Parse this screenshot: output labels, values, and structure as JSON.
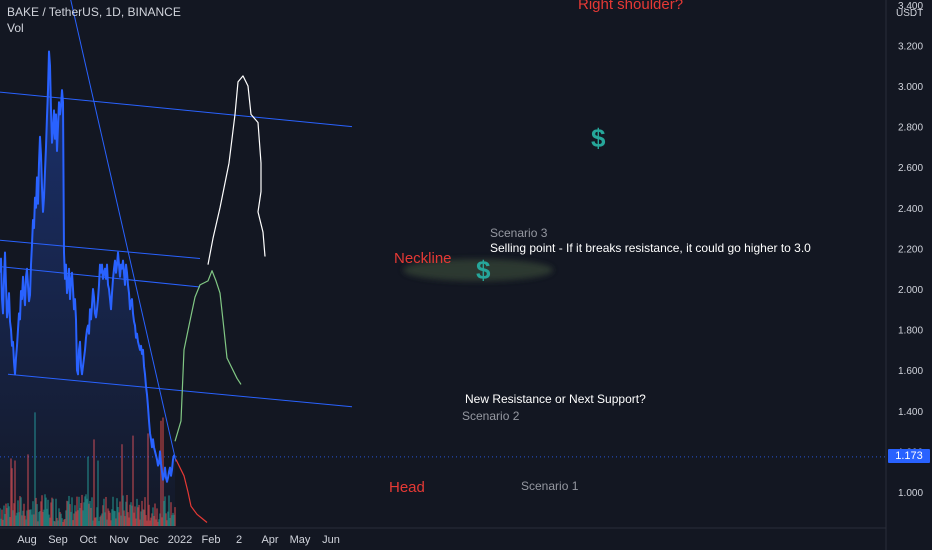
{
  "header": {
    "symbol_line": "BAKE / TetherUS, 1D, BINANCE",
    "volume_label": "Vol"
  },
  "price_axis": {
    "currency": "USDT",
    "ticks": [
      "3.400",
      "3.200",
      "3.000",
      "2.800",
      "2.600",
      "2.400",
      "2.200",
      "2.000",
      "1.800",
      "1.600",
      "1.400",
      "1.200",
      "1.000"
    ],
    "last_price": "1.173"
  },
  "time_axis": {
    "ticks": [
      "Aug",
      "Sep",
      "Oct",
      "Nov",
      "Dec",
      "2022",
      "Feb",
      "2",
      "Apr",
      "May",
      "Jun"
    ]
  },
  "annotations": {
    "right_shoulder": "Right shoulder?",
    "scenario3": "Scenario 3",
    "selling_point": "Selling point - If it breaks resistance, it could go higher to 3.0",
    "neckline": "Neckline",
    "new_resistance": "New Resistance or Next Support?",
    "scenario2": "Scenario 2",
    "head": "Head",
    "scenario1": "Scenario 1",
    "dollar": "$"
  },
  "colors": {
    "background": "#131722",
    "price_line": "#2962ff",
    "trend_lines": "#2962ff",
    "annotation_red": "#e53935",
    "annotation_green": "#26a69a",
    "scenario_green": "#81c784",
    "scenario_red": "#e53935",
    "scenario_white": "#ffffff",
    "volume_up": "#26a69a",
    "volume_down": "#ef5350"
  },
  "chart_data": {
    "type": "line",
    "ylim": [
      0.8,
      3.4
    ],
    "price_series": [
      {
        "d": "2021-07-05",
        "v": 2.08
      },
      {
        "d": "2021-07-06",
        "v": 2.15
      },
      {
        "d": "2021-07-07",
        "v": 1.95
      },
      {
        "d": "2021-07-08",
        "v": 1.88
      },
      {
        "d": "2021-07-09",
        "v": 2.05
      },
      {
        "d": "2021-07-10",
        "v": 2.18
      },
      {
        "d": "2021-07-11",
        "v": 2.02
      },
      {
        "d": "2021-07-12",
        "v": 1.86
      },
      {
        "d": "2021-07-13",
        "v": 1.9
      },
      {
        "d": "2021-07-14",
        "v": 1.98
      },
      {
        "d": "2021-07-15",
        "v": 1.84
      },
      {
        "d": "2021-07-16",
        "v": 1.8
      },
      {
        "d": "2021-07-17",
        "v": 1.72
      },
      {
        "d": "2021-07-18",
        "v": 1.74
      },
      {
        "d": "2021-07-19",
        "v": 1.64
      },
      {
        "d": "2021-07-20",
        "v": 1.58
      },
      {
        "d": "2021-07-21",
        "v": 1.66
      },
      {
        "d": "2021-07-22",
        "v": 1.72
      },
      {
        "d": "2021-07-23",
        "v": 1.8
      },
      {
        "d": "2021-07-24",
        "v": 1.88
      },
      {
        "d": "2021-07-25",
        "v": 1.85
      },
      {
        "d": "2021-07-26",
        "v": 1.99
      },
      {
        "d": "2021-07-27",
        "v": 1.95
      },
      {
        "d": "2021-07-28",
        "v": 2.06
      },
      {
        "d": "2021-07-29",
        "v": 1.98
      },
      {
        "d": "2021-07-30",
        "v": 1.92
      },
      {
        "d": "2021-07-31",
        "v": 2.06
      },
      {
        "d": "2021-08-01",
        "v": 2.1
      },
      {
        "d": "2021-08-02",
        "v": 2.02
      },
      {
        "d": "2021-08-03",
        "v": 1.94
      },
      {
        "d": "2021-08-04",
        "v": 1.97
      },
      {
        "d": "2021-08-05",
        "v": 2.12
      },
      {
        "d": "2021-08-06",
        "v": 2.22
      },
      {
        "d": "2021-08-07",
        "v": 2.34
      },
      {
        "d": "2021-08-08",
        "v": 2.3
      },
      {
        "d": "2021-08-09",
        "v": 2.45
      },
      {
        "d": "2021-08-10",
        "v": 2.4
      },
      {
        "d": "2021-08-11",
        "v": 2.55
      },
      {
        "d": "2021-08-12",
        "v": 2.42
      },
      {
        "d": "2021-08-13",
        "v": 2.62
      },
      {
        "d": "2021-08-14",
        "v": 2.75
      },
      {
        "d": "2021-08-15",
        "v": 2.66
      },
      {
        "d": "2021-08-16",
        "v": 2.5
      },
      {
        "d": "2021-08-17",
        "v": 2.38
      },
      {
        "d": "2021-08-18",
        "v": 2.45
      },
      {
        "d": "2021-08-19",
        "v": 2.58
      },
      {
        "d": "2021-08-20",
        "v": 2.7
      },
      {
        "d": "2021-08-21",
        "v": 2.85
      },
      {
        "d": "2021-08-22",
        "v": 2.98
      },
      {
        "d": "2021-08-23",
        "v": 3.17
      },
      {
        "d": "2021-08-24",
        "v": 3.1
      },
      {
        "d": "2021-08-25",
        "v": 2.88
      },
      {
        "d": "2021-08-26",
        "v": 2.72
      },
      {
        "d": "2021-08-27",
        "v": 2.78
      },
      {
        "d": "2021-08-28",
        "v": 2.88
      },
      {
        "d": "2021-08-29",
        "v": 2.74
      },
      {
        "d": "2021-08-30",
        "v": 2.86
      },
      {
        "d": "2021-08-31",
        "v": 2.68
      },
      {
        "d": "2021-09-01",
        "v": 2.8
      },
      {
        "d": "2021-09-02",
        "v": 2.92
      },
      {
        "d": "2021-09-03",
        "v": 2.86
      },
      {
        "d": "2021-09-04",
        "v": 2.9
      },
      {
        "d": "2021-09-05",
        "v": 2.98
      },
      {
        "d": "2021-09-06",
        "v": 2.92
      },
      {
        "d": "2021-09-07",
        "v": 2.18
      },
      {
        "d": "2021-09-08",
        "v": 2.05
      },
      {
        "d": "2021-09-09",
        "v": 2.12
      },
      {
        "d": "2021-09-10",
        "v": 1.98
      },
      {
        "d": "2021-09-11",
        "v": 2.02
      },
      {
        "d": "2021-09-12",
        "v": 2.1
      },
      {
        "d": "2021-09-13",
        "v": 1.95
      },
      {
        "d": "2021-09-14",
        "v": 2.04
      },
      {
        "d": "2021-09-15",
        "v": 2.08
      },
      {
        "d": "2021-09-16",
        "v": 2.0
      },
      {
        "d": "2021-09-17",
        "v": 1.9
      },
      {
        "d": "2021-09-18",
        "v": 1.95
      },
      {
        "d": "2021-09-19",
        "v": 1.85
      },
      {
        "d": "2021-09-20",
        "v": 1.6
      },
      {
        "d": "2021-09-21",
        "v": 1.58
      },
      {
        "d": "2021-09-22",
        "v": 1.7
      },
      {
        "d": "2021-09-23",
        "v": 1.74
      },
      {
        "d": "2021-09-24",
        "v": 1.62
      },
      {
        "d": "2021-09-25",
        "v": 1.58
      },
      {
        "d": "2021-09-26",
        "v": 1.62
      },
      {
        "d": "2021-09-27",
        "v": 1.66
      },
      {
        "d": "2021-09-28",
        "v": 1.7
      },
      {
        "d": "2021-09-29",
        "v": 1.76
      },
      {
        "d": "2021-09-30",
        "v": 1.8
      },
      {
        "d": "2021-10-01",
        "v": 1.82
      },
      {
        "d": "2021-10-02",
        "v": 1.78
      },
      {
        "d": "2021-10-03",
        "v": 1.9
      },
      {
        "d": "2021-10-04",
        "v": 1.85
      },
      {
        "d": "2021-10-05",
        "v": 1.92
      },
      {
        "d": "2021-10-06",
        "v": 2.0
      },
      {
        "d": "2021-10-07",
        "v": 1.96
      },
      {
        "d": "2021-10-08",
        "v": 1.88
      },
      {
        "d": "2021-10-09",
        "v": 1.86
      },
      {
        "d": "2021-10-10",
        "v": 1.9
      },
      {
        "d": "2021-10-11",
        "v": 1.95
      },
      {
        "d": "2021-10-12",
        "v": 2.02
      },
      {
        "d": "2021-10-13",
        "v": 2.12
      },
      {
        "d": "2021-10-14",
        "v": 2.08
      },
      {
        "d": "2021-10-15",
        "v": 2.12
      },
      {
        "d": "2021-10-16",
        "v": 2.05
      },
      {
        "d": "2021-10-17",
        "v": 2.08
      },
      {
        "d": "2021-10-18",
        "v": 2.1
      },
      {
        "d": "2021-10-19",
        "v": 2.05
      },
      {
        "d": "2021-10-20",
        "v": 2.12
      },
      {
        "d": "2021-10-21",
        "v": 2.02
      },
      {
        "d": "2021-10-22",
        "v": 2.0
      },
      {
        "d": "2021-10-23",
        "v": 1.95
      },
      {
        "d": "2021-10-24",
        "v": 1.9
      },
      {
        "d": "2021-10-25",
        "v": 1.98
      },
      {
        "d": "2021-10-26",
        "v": 2.05
      },
      {
        "d": "2021-10-27",
        "v": 2.1
      },
      {
        "d": "2021-10-28",
        "v": 2.14
      },
      {
        "d": "2021-10-29",
        "v": 2.08
      },
      {
        "d": "2021-10-30",
        "v": 2.12
      },
      {
        "d": "2021-10-31",
        "v": 2.18
      },
      {
        "d": "2021-11-01",
        "v": 2.12
      },
      {
        "d": "2021-11-02",
        "v": 2.06
      },
      {
        "d": "2021-11-03",
        "v": 2.12
      },
      {
        "d": "2021-11-04",
        "v": 2.1
      },
      {
        "d": "2021-11-05",
        "v": 2.14
      },
      {
        "d": "2021-11-06",
        "v": 2.08
      },
      {
        "d": "2021-11-07",
        "v": 2.02
      },
      {
        "d": "2021-11-08",
        "v": 2.12
      },
      {
        "d": "2021-11-09",
        "v": 2.08
      },
      {
        "d": "2021-11-10",
        "v": 2.02
      },
      {
        "d": "2021-11-11",
        "v": 1.98
      },
      {
        "d": "2021-11-12",
        "v": 1.9
      },
      {
        "d": "2021-11-13",
        "v": 1.94
      },
      {
        "d": "2021-11-14",
        "v": 1.95
      },
      {
        "d": "2021-11-15",
        "v": 1.88
      },
      {
        "d": "2021-11-16",
        "v": 1.84
      },
      {
        "d": "2021-11-17",
        "v": 1.82
      },
      {
        "d": "2021-11-18",
        "v": 1.76
      },
      {
        "d": "2021-11-19",
        "v": 1.78
      },
      {
        "d": "2021-11-20",
        "v": 1.74
      },
      {
        "d": "2021-11-21",
        "v": 1.72
      },
      {
        "d": "2021-11-22",
        "v": 1.7
      },
      {
        "d": "2021-11-23",
        "v": 1.72
      },
      {
        "d": "2021-11-24",
        "v": 1.68
      },
      {
        "d": "2021-11-25",
        "v": 1.7
      },
      {
        "d": "2021-11-26",
        "v": 1.62
      },
      {
        "d": "2021-11-27",
        "v": 1.58
      },
      {
        "d": "2021-11-28",
        "v": 1.52
      },
      {
        "d": "2021-11-29",
        "v": 1.48
      },
      {
        "d": "2021-11-30",
        "v": 1.42
      },
      {
        "d": "2021-12-01",
        "v": 1.35
      },
      {
        "d": "2021-12-02",
        "v": 1.29
      },
      {
        "d": "2021-12-03",
        "v": 1.26
      },
      {
        "d": "2021-12-04",
        "v": 1.22
      },
      {
        "d": "2021-12-05",
        "v": 1.26
      },
      {
        "d": "2021-12-06",
        "v": 1.22
      },
      {
        "d": "2021-12-07",
        "v": 1.2
      },
      {
        "d": "2021-12-08",
        "v": 1.18
      },
      {
        "d": "2021-12-09",
        "v": 1.16
      },
      {
        "d": "2021-12-10",
        "v": 1.13
      },
      {
        "d": "2021-12-11",
        "v": 1.14
      },
      {
        "d": "2021-12-12",
        "v": 1.2
      },
      {
        "d": "2021-12-13",
        "v": 1.14
      },
      {
        "d": "2021-12-14",
        "v": 1.1
      },
      {
        "d": "2021-12-15",
        "v": 1.06
      },
      {
        "d": "2021-12-16",
        "v": 1.08
      },
      {
        "d": "2021-12-17",
        "v": 1.12
      },
      {
        "d": "2021-12-18",
        "v": 1.07
      },
      {
        "d": "2021-12-19",
        "v": 1.05
      },
      {
        "d": "2021-12-20",
        "v": 1.07
      },
      {
        "d": "2021-12-21",
        "v": 1.1
      },
      {
        "d": "2021-12-22",
        "v": 1.12
      },
      {
        "d": "2021-12-23",
        "v": 1.08
      },
      {
        "d": "2021-12-24",
        "v": 1.11
      },
      {
        "d": "2021-12-25",
        "v": 1.16
      },
      {
        "d": "2021-12-26",
        "v": 1.18
      },
      {
        "d": "2021-12-27",
        "v": 1.173
      }
    ],
    "trend_lines": [
      {
        "from": {
          "d": "2021-07-05",
          "v": 2.97
        },
        "to": {
          "d": "2022-06-22",
          "v": 2.8
        }
      },
      {
        "from": {
          "d": "2021-07-05",
          "v": 2.24
        },
        "to": {
          "d": "2022-01-21",
          "v": 2.15
        }
      },
      {
        "from": {
          "d": "2021-07-05",
          "v": 2.11
        },
        "to": {
          "d": "2022-01-21",
          "v": 2.01
        }
      },
      {
        "from": {
          "d": "2021-07-13",
          "v": 1.58
        },
        "to": {
          "d": "2022-06-22",
          "v": 1.42
        }
      },
      {
        "from": {
          "d": "2021-09-13",
          "v": 3.44
        },
        "to": {
          "d": "2021-12-28",
          "v": 1.15
        }
      }
    ],
    "scenario_paths": [
      {
        "name": "Scenario 1",
        "points": [
          {
            "d": "2021-12-28",
            "v": 1.16
          },
          {
            "d": "2022-01-05",
            "v": 1.08
          },
          {
            "d": "2022-01-09",
            "v": 1.0
          },
          {
            "d": "2022-01-12",
            "v": 0.93
          },
          {
            "d": "2022-01-18",
            "v": 0.89
          },
          {
            "d": "2022-01-23",
            "v": 0.87
          },
          {
            "d": "2022-01-28",
            "v": 0.85
          }
        ]
      },
      {
        "name": "Scenario 2",
        "points": [
          {
            "d": "2021-12-27",
            "v": 1.25
          },
          {
            "d": "2022-01-02",
            "v": 1.35
          },
          {
            "d": "2022-01-05",
            "v": 1.7
          },
          {
            "d": "2022-01-10",
            "v": 1.82
          },
          {
            "d": "2022-01-16",
            "v": 1.96
          },
          {
            "d": "2022-01-21",
            "v": 2.02
          },
          {
            "d": "2022-01-29",
            "v": 2.04
          },
          {
            "d": "2022-02-02",
            "v": 2.09
          },
          {
            "d": "2022-02-06",
            "v": 2.04
          },
          {
            "d": "2022-02-10",
            "v": 1.98
          },
          {
            "d": "2022-02-14",
            "v": 1.8
          },
          {
            "d": "2022-02-17",
            "v": 1.66
          },
          {
            "d": "2022-02-20",
            "v": 1.63
          },
          {
            "d": "2022-02-27",
            "v": 1.56
          },
          {
            "d": "2022-03-03",
            "v": 1.53
          }
        ]
      },
      {
        "name": "Scenario 3",
        "points": [
          {
            "d": "2022-01-29",
            "v": 2.12
          },
          {
            "d": "2022-02-03",
            "v": 2.25
          },
          {
            "d": "2022-02-10",
            "v": 2.4
          },
          {
            "d": "2022-02-19",
            "v": 2.62
          },
          {
            "d": "2022-02-25",
            "v": 2.86
          },
          {
            "d": "2022-02-28",
            "v": 3.02
          },
          {
            "d": "2022-03-05",
            "v": 3.05
          },
          {
            "d": "2022-03-10",
            "v": 3.0
          },
          {
            "d": "2022-03-13",
            "v": 2.86
          },
          {
            "d": "2022-03-20",
            "v": 2.82
          },
          {
            "d": "2022-03-23",
            "v": 2.62
          },
          {
            "d": "2022-03-23",
            "v": 2.48
          },
          {
            "d": "2022-03-20",
            "v": 2.38
          },
          {
            "d": "2022-03-25",
            "v": 2.28
          },
          {
            "d": "2022-03-27",
            "v": 2.16
          }
        ]
      }
    ]
  }
}
